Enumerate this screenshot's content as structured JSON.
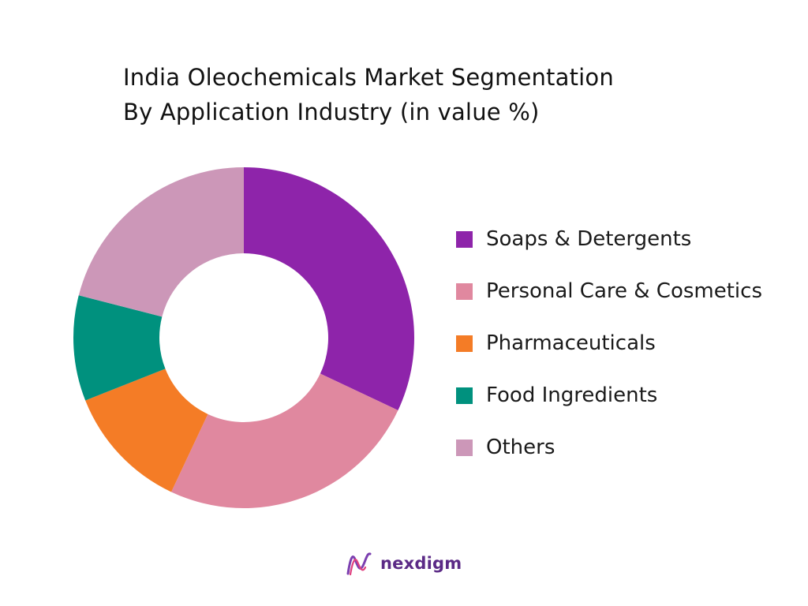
{
  "chart_data": {
    "type": "pie",
    "style": "donut",
    "title": "India Oleochemicals Market Segmentation",
    "subtitle": "By Application Industry (in value %)",
    "categories": [
      "Soaps & Detergents",
      "Personal Care & Cosmetics",
      "Pharmaceuticals",
      "Food Ingredients",
      "Others"
    ],
    "values": [
      32,
      25,
      12,
      10,
      21
    ],
    "colors": [
      "#8e24aa",
      "#e0889f",
      "#f47c26",
      "#00917e",
      "#cc97b8"
    ],
    "legend_position": "right"
  },
  "brand": {
    "name": "nexdigm",
    "logo_icon": "nexdigm-wave-logo-icon",
    "color": "#5b2a86"
  }
}
